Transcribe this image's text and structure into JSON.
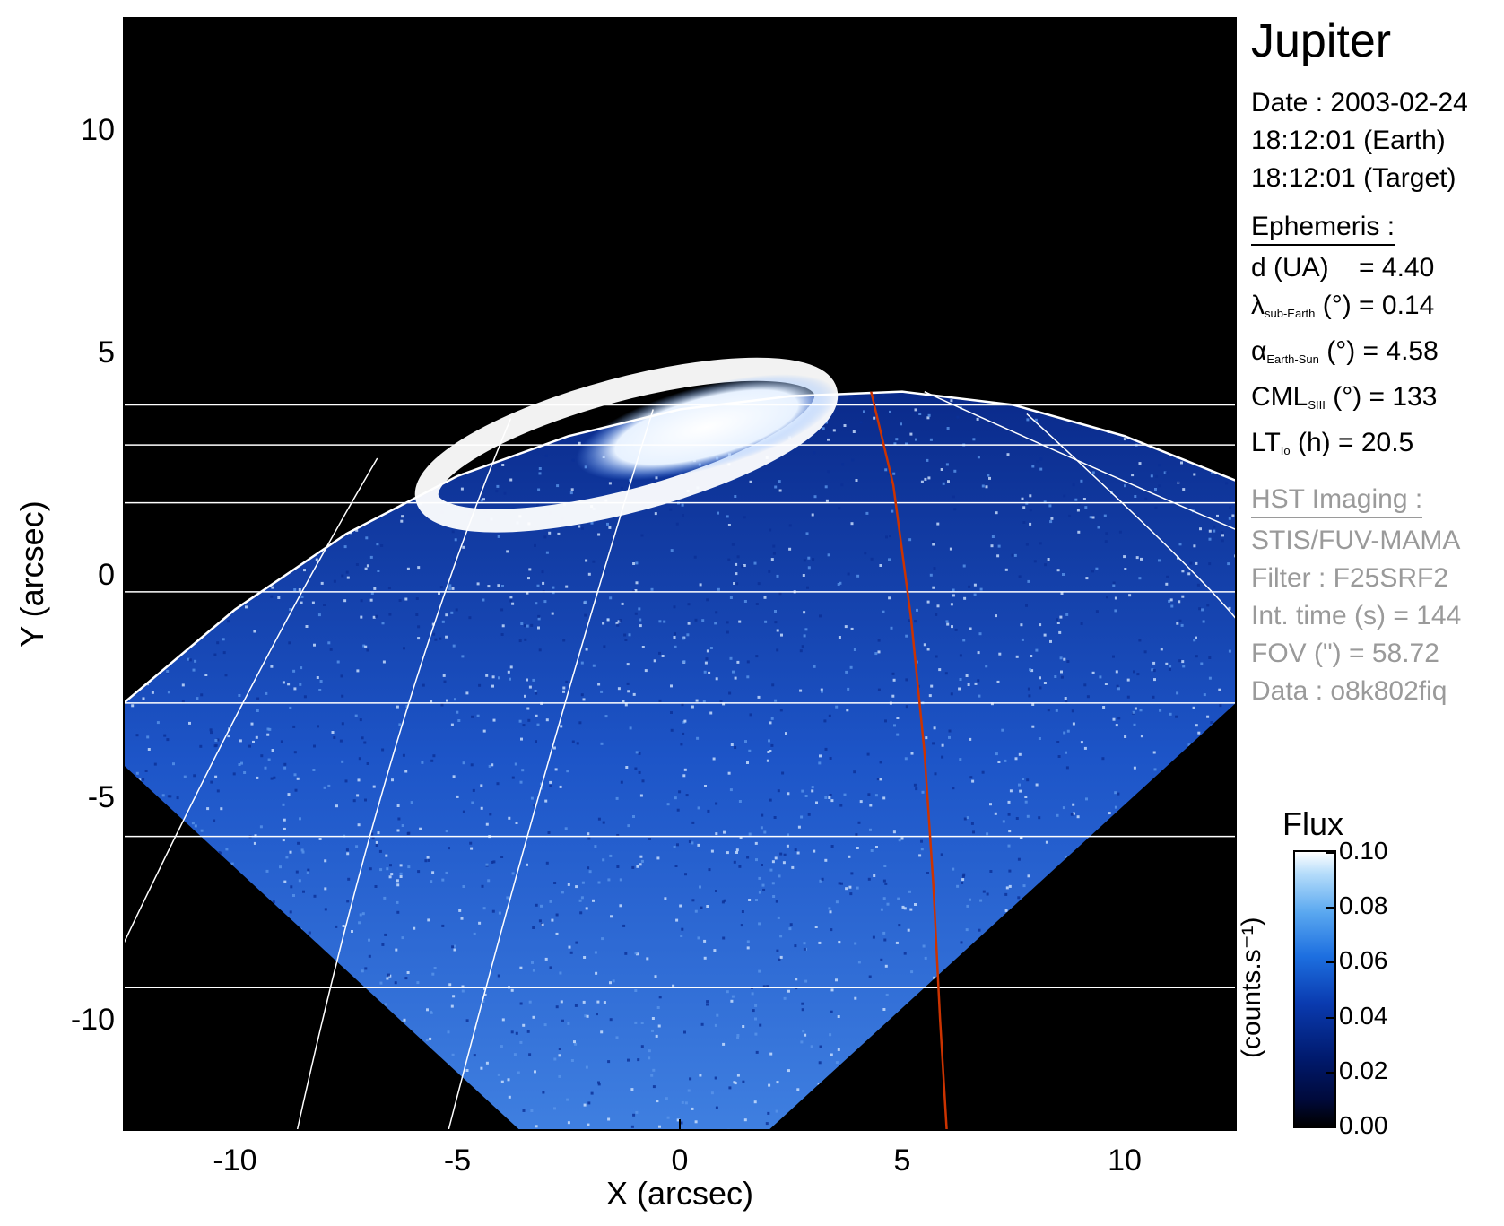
{
  "chart_data": {
    "type": "heatmap",
    "title": "Jupiter",
    "xlabel": "X (arcsec)",
    "ylabel": "Y (arcsec)",
    "xlim": [
      -12.5,
      12.5
    ],
    "ylim": [
      -12.5,
      12.5
    ],
    "xticks": [
      -10,
      -5,
      0,
      5,
      10
    ],
    "yticks": [
      10,
      5,
      0,
      -5,
      -10
    ],
    "colorbar": {
      "title": "Flux",
      "unit": "(counts.s⁻¹)",
      "ticks": [
        "0.10",
        "0.08",
        "0.06",
        "0.04",
        "0.02",
        "0.00"
      ],
      "range": [
        0.0,
        0.1
      ]
    },
    "grid_latitude_y": [
      3.8,
      2.9,
      1.6,
      -0.4,
      -2.9,
      -5.9,
      -9.3
    ],
    "limb": {
      "x": [
        -12.5,
        -10,
        -7.5,
        -5,
        -2.5,
        0,
        2.5,
        5,
        7.5,
        10,
        12.5
      ],
      "y": [
        -2.9,
        -0.8,
        0.9,
        2.2,
        3.1,
        3.7,
        4.0,
        4.1,
        3.8,
        3.1,
        2.1
      ]
    },
    "meridian_red": {
      "x": [
        4.3,
        4.8,
        5.2,
        5.5,
        5.7,
        5.85,
        6.0
      ],
      "y": [
        4.1,
        2.0,
        -1.0,
        -4.0,
        -7.0,
        -10.0,
        -12.5
      ]
    },
    "colors": {
      "background": "#000000",
      "grid": "#ffffff",
      "meridian": "#cc3300",
      "emission": "#1f5fd6"
    }
  },
  "panel": {
    "title": "Jupiter",
    "date_line": "Date : 2003-02-24",
    "earth_time": "18:12:01 (Earth)",
    "target_time": "18:12:01 (Target)",
    "ephemeris_header": "Ephemeris :",
    "d_label": "d (UA)",
    "d_value": "= 4.40",
    "lambda_symbol": "λ",
    "lambda_sub": "sub-Earth",
    "lambda_rest": "(°) = 0.14",
    "alpha_symbol": "α",
    "alpha_sub": "Earth-Sun",
    "alpha_rest": "(°) = 4.58",
    "cml_symbol": "CML",
    "cml_sub": "SIII",
    "cml_rest": "(°) = 133",
    "lt_symbol": "LT",
    "lt_sub": "Io",
    "lt_rest": "(h) = 20.5",
    "hst_header": "HST Imaging :",
    "instrument": "STIS/FUV-MAMA",
    "filter": "Filter : F25SRF2",
    "int_time": "Int. time (s) = 144",
    "fov": "FOV (\") = 58.72",
    "data_id": "Data : o8k802fiq"
  }
}
